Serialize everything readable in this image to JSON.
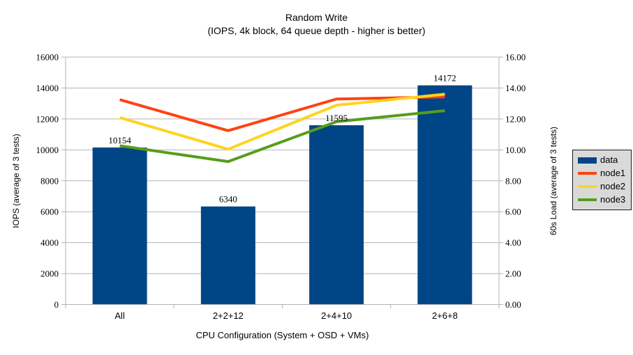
{
  "chart_data": {
    "type": "combo-bar-line",
    "title": "Random Write",
    "subtitle": "(IOPS, 4k block, 64 queue depth - higher is better)",
    "categories": [
      "All",
      "2+2+12",
      "2+4+10",
      "2+6+8"
    ],
    "series": [
      {
        "name": "data",
        "type": "bar",
        "axis": "left",
        "color": "#004586",
        "values": [
          10154,
          6340,
          11595,
          14172
        ],
        "labels": [
          "10154",
          "6340",
          "11595",
          "14172"
        ]
      },
      {
        "name": "node1",
        "type": "line",
        "axis": "right",
        "color": "#ff420e",
        "values": [
          14.9,
          12.65,
          14.95,
          15.1
        ]
      },
      {
        "name": "node2",
        "type": "line",
        "axis": "right",
        "color": "#ffd320",
        "values": [
          13.6,
          11.3,
          14.5,
          15.3
        ]
      },
      {
        "name": "node3",
        "type": "line",
        "axis": "right",
        "color": "#579d1c",
        "values": [
          11.55,
          10.4,
          13.3,
          14.1
        ]
      }
    ],
    "left_axis": {
      "title": "IOPS (average of 3 tests)",
      "min": 0,
      "max": 16000,
      "step": 2000,
      "decimals": 0
    },
    "right_axis": {
      "title": "60s Load (average of 3 tests)",
      "min": 0,
      "max": 18,
      "step": 2,
      "decimals": 2
    },
    "x_axis": {
      "title": "CPU Configuration (System + OSD + VMs)"
    },
    "legend": {
      "position": "right",
      "entries": [
        "data",
        "node1",
        "node2",
        "node3"
      ]
    },
    "grid": {
      "horizontal": true,
      "color": "#b3b3b3"
    },
    "axis_line_color": "#b3b3b3",
    "background": "#ffffff",
    "legend_background": "#d9d9d9"
  }
}
